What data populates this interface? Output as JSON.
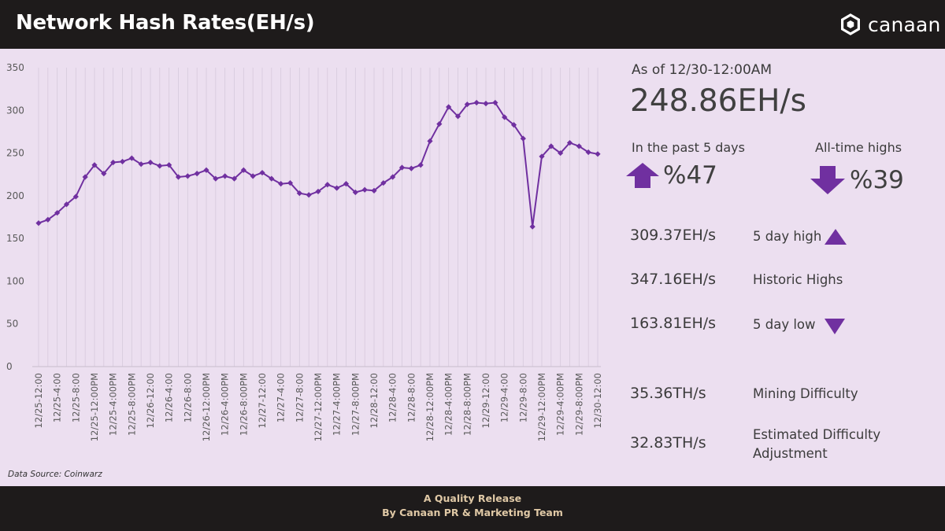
{
  "header": {
    "title": "Network Hash Rates(EH/s)",
    "logo_text": "canaan"
  },
  "stats": {
    "as_of": "As of 12/30-12:00AM",
    "current": "248.86EH/s",
    "past5_label": "In the past 5 days",
    "past5_value": "%47",
    "ath_label": "All-time highs",
    "ath_value": "%39",
    "rows": [
      {
        "value": "309.37EH/s",
        "label": "5 day high"
      },
      {
        "value": "347.16EH/s",
        "label": "Historic Highs"
      },
      {
        "value": "163.81EH/s",
        "label": "5 day low"
      },
      {
        "value": "35.36TH/s",
        "label": "Mining Difficulty"
      },
      {
        "value": "32.83TH/s",
        "label": "Estimated Difficulty Adjustment"
      }
    ]
  },
  "source": "Data Source: Coinwarz",
  "footer": {
    "line1": "A Quality Release",
    "line2": "By Canaan PR & Marketing Team"
  },
  "colors": {
    "line": "#7030a0",
    "panel": "#ecdff0",
    "header": "#1e1b1b",
    "footer_text": "#e0c9a6"
  },
  "chart_data": {
    "type": "line",
    "ylim": [
      0,
      350
    ],
    "yticks": [
      0,
      50,
      100,
      150,
      200,
      250,
      300,
      350
    ],
    "grid": "vertical",
    "tick_labels": [
      "12/25-12:00",
      "12/25-4:00",
      "12/25-8:00",
      "12/25-12:00PM",
      "12/25-4:00PM",
      "12/25-8:00PM",
      "12/26-12:00",
      "12/26-4:00",
      "12/26-8:00",
      "12/26-12:00PM",
      "12/26-4:00PM",
      "12/26-8:00PM",
      "12/27-12:00",
      "12/27-4:00",
      "12/27-8:00",
      "12/27-12:00PM",
      "12/27-4:00PM",
      "12/27-8:00PM",
      "12/28-12:00",
      "12/28-4:00",
      "12/28-8:00",
      "12/28-12:00PM",
      "12/28-4:00PM",
      "12/28-8:00PM",
      "12/29-12:00",
      "12/29-4:00",
      "12/29-8:00",
      "12/29-12:00PM",
      "12/29-4:00PM",
      "12/29-8:00PM",
      "12/30-12:00"
    ],
    "values": [
      168,
      172,
      180,
      190,
      199,
      222,
      236,
      226,
      239,
      240,
      244,
      237,
      239,
      235,
      236,
      222,
      223,
      226,
      230,
      220,
      223,
      220,
      230,
      223,
      227,
      220,
      214,
      215,
      203,
      201,
      205,
      213,
      209,
      214,
      204,
      207,
      206,
      215,
      222,
      233,
      232,
      236,
      264,
      284,
      304,
      293,
      307,
      309,
      308,
      309,
      292,
      283,
      267,
      163.81,
      246,
      258,
      250,
      262,
      258,
      251,
      248.86
    ]
  }
}
